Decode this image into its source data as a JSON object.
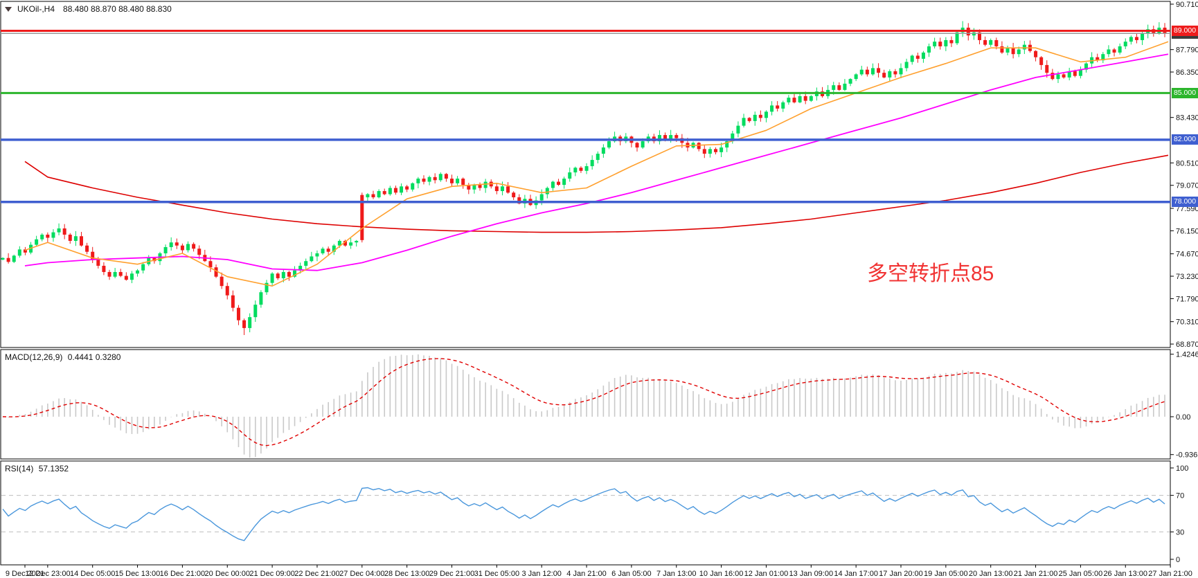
{
  "header": {
    "symbol_info": "UKOil-,H4",
    "ohlc": "88.480 88.870 88.480 88.830"
  },
  "annotation": {
    "text": "多空转折点85",
    "color": "#f13333"
  },
  "price_axis": {
    "ticks": [
      {
        "label": "90.710",
        "price": 90.71
      },
      {
        "label": "87.790",
        "price": 87.79
      },
      {
        "label": "86.350",
        "price": 86.35
      },
      {
        "label": "83.430",
        "price": 83.43
      },
      {
        "label": "80.510",
        "price": 80.51
      },
      {
        "label": "79.070",
        "price": 79.07
      },
      {
        "label": "77.590",
        "price": 77.59
      },
      {
        "label": "76.150",
        "price": 76.15
      },
      {
        "label": "74.670",
        "price": 74.67
      },
      {
        "label": "73.230",
        "price": 73.23
      },
      {
        "label": "71.790",
        "price": 71.79
      },
      {
        "label": "70.310",
        "price": 70.31
      },
      {
        "label": "68.870",
        "price": 68.87
      }
    ],
    "badges": [
      {
        "name": "current-price-badge",
        "label": "88.830",
        "price": 88.83,
        "bg": "#3c3c3c",
        "line_color": "#9a9a9a",
        "line_width": 1.5
      },
      {
        "name": "resistance-badge-89",
        "label": "89.000",
        "price": 89.0,
        "bg": "#ee1c1c",
        "line_color": "#ee1c1c",
        "line_width": 3
      },
      {
        "name": "support-badge-85",
        "label": "85.000",
        "price": 85.0,
        "bg": "#2cb52c",
        "line_color": "#2cb52c",
        "line_width": 3
      },
      {
        "name": "support-badge-82",
        "label": "82.000",
        "price": 82.0,
        "bg": "#3f5fd0",
        "line_color": "#3f5fd0",
        "line_width": 3.5
      },
      {
        "name": "support-badge-78",
        "label": "78.000",
        "price": 78.0,
        "bg": "#3f5fd0",
        "line_color": "#3f5fd0",
        "line_width": 3.5
      }
    ]
  },
  "time_axis": {
    "labels": [
      "9 Dec 2021",
      "12 Dec 23:00",
      "14 Dec 05:00",
      "15 Dec 13:00",
      "16 Dec 21:00",
      "20 Dec 00:00",
      "21 Dec 09:00",
      "22 Dec 21:00",
      "27 Dec 04:00",
      "28 Dec 13:00",
      "29 Dec 21:00",
      "31 Dec 05:00",
      "3 Jan 12:00",
      "4 Jan 21:00",
      "6 Jan 05:00",
      "7 Jan 13:00",
      "10 Jan 16:00",
      "12 Jan 01:00",
      "13 Jan 09:00",
      "14 Jan 17:00",
      "17 Jan 20:00",
      "19 Jan 05:00",
      "20 Jan 13:00",
      "21 Jan 21:00",
      "25 Jan 05:00",
      "26 Jan 13:00",
      "27 Jan 21:00"
    ]
  },
  "indicators": {
    "macd": {
      "title": "MACD(12,26,9)",
      "values": "0.4441 0.3280",
      "axis": [
        {
          "label": "1.4246",
          "value": 1.4246
        },
        {
          "label": "0.00",
          "value": 0.0
        },
        {
          "label": "-0.9363",
          "value": -0.9363
        }
      ]
    },
    "rsi": {
      "title": "RSI(14)",
      "value": "57.1352",
      "axis": [
        {
          "label": "100",
          "value": 100
        },
        {
          "label": "70",
          "value": 70
        },
        {
          "label": "30",
          "value": 30
        },
        {
          "label": "0",
          "value": 0
        }
      ],
      "levels": [
        70,
        30
      ]
    }
  },
  "chart_data": {
    "type": "candlestick",
    "symbol": "UKOil-",
    "timeframe": "H4",
    "title": "UKOil- H4 with MACD(12,26,9) and RSI(14)",
    "ylim": [
      68.87,
      90.71
    ],
    "last_ohlc": {
      "open": 88.48,
      "high": 88.87,
      "low": 88.48,
      "close": 88.83
    },
    "closes": [
      74.4,
      74.15,
      74.55,
      74.95,
      74.75,
      75.25,
      75.6,
      75.9,
      75.7,
      76.05,
      76.3,
      75.9,
      75.5,
      75.8,
      75.2,
      74.8,
      74.3,
      73.9,
      73.5,
      73.2,
      73.5,
      73.25,
      73.0,
      73.4,
      73.6,
      74.0,
      74.4,
      74.2,
      74.7,
      75.1,
      75.4,
      75.2,
      74.9,
      75.3,
      75.0,
      74.6,
      74.2,
      73.8,
      73.2,
      72.6,
      72.0,
      71.2,
      70.4,
      69.9,
      70.6,
      71.4,
      72.2,
      72.8,
      73.4,
      73.1,
      73.5,
      73.2,
      73.6,
      73.9,
      74.2,
      74.5,
      74.7,
      75.0,
      74.8,
      75.2,
      75.5,
      75.2,
      75.4,
      75.5,
      78.3,
      78.5,
      78.3,
      78.7,
      78.5,
      78.9,
      78.6,
      79.0,
      78.8,
      79.2,
      79.5,
      79.3,
      79.6,
      79.4,
      79.8,
      79.5,
      79.2,
      79.5,
      79.1,
      78.8,
      79.1,
      78.9,
      79.3,
      79.0,
      78.7,
      79.0,
      78.6,
      78.3,
      77.9,
      78.2,
      77.8,
      78.1,
      78.5,
      78.9,
      79.3,
      79.1,
      79.5,
      79.9,
      80.2,
      80.0,
      80.3,
      80.7,
      81.1,
      81.5,
      81.9,
      82.2,
      81.9,
      82.2,
      81.8,
      81.5,
      81.9,
      82.2,
      81.9,
      82.3,
      82.0,
      82.3,
      82.1,
      81.8,
      81.5,
      81.8,
      81.4,
      81.1,
      81.4,
      81.2,
      81.5,
      81.9,
      82.4,
      82.9,
      83.4,
      83.2,
      83.6,
      83.4,
      83.8,
      84.2,
      84.0,
      84.4,
      84.7,
      84.4,
      84.8,
      84.5,
      84.8,
      85.1,
      84.8,
      85.2,
      85.5,
      85.2,
      85.6,
      85.9,
      86.2,
      86.5,
      86.2,
      86.6,
      86.3,
      86.0,
      86.4,
      86.2,
      86.6,
      87.0,
      87.4,
      87.2,
      87.6,
      88.0,
      88.3,
      88.0,
      88.4,
      88.2,
      88.9,
      89.2,
      88.7,
      88.9,
      88.4,
      88.1,
      88.4,
      88.0,
      87.6,
      87.9,
      87.5,
      87.8,
      88.1,
      87.7,
      87.3,
      86.8,
      86.3,
      85.9,
      86.2,
      86.0,
      86.4,
      86.1,
      86.5,
      86.9,
      87.3,
      87.1,
      87.5,
      87.8,
      87.6,
      88.0,
      88.3,
      88.6,
      88.4,
      88.8,
      89.1,
      88.8,
      89.2,
      88.83
    ],
    "candle_overrides": {
      "43": {
        "l": 69.45
      },
      "64": {
        "o": 78.45,
        "h": 78.6,
        "l": 75.4,
        "c": 75.55
      },
      "171": {
        "h": 89.62
      },
      "206": {
        "h": 89.55
      }
    },
    "ma_fast_orange": [
      74.9,
      75.4,
      74.4,
      74.0,
      74.7,
      73.2,
      72.6,
      74.0,
      76.3,
      78.2,
      79.0,
      79.2,
      78.6,
      78.9,
      80.3,
      81.6,
      81.7,
      82.6,
      84.0,
      85.0,
      86.0,
      86.9,
      87.9,
      87.9,
      87.0,
      87.3,
      88.3
    ],
    "ma_slow_magenta": [
      73.9,
      74.1,
      74.3,
      74.4,
      74.5,
      74.3,
      73.7,
      73.6,
      74.1,
      74.9,
      75.8,
      76.6,
      77.3,
      77.9,
      78.6,
      79.4,
      80.2,
      81.0,
      81.8,
      82.6,
      83.4,
      84.3,
      85.2,
      86.0,
      86.5,
      87.0,
      87.5
    ],
    "ma_long_red": [
      80.6,
      79.6,
      78.9,
      78.3,
      77.8,
      77.3,
      76.9,
      76.6,
      76.4,
      76.25,
      76.15,
      76.1,
      76.05,
      76.05,
      76.1,
      76.2,
      76.35,
      76.6,
      76.9,
      77.3,
      77.7,
      78.1,
      78.6,
      79.2,
      79.9,
      80.5,
      81.0
    ],
    "macd_axis_range": [
      -0.9363,
      1.4246
    ],
    "rsi_range": [
      0,
      100
    ]
  },
  "colors": {
    "up": "#00dc5f",
    "down": "#ef1a1a",
    "ma_fast": "#ffa02e",
    "ma_slow": "#ff00ff",
    "ma_long": "#dd0000",
    "macd_hist": "#c9c9c9",
    "macd_signal": "#e00000",
    "rsi_line": "#4a97dc",
    "level_dashed": "#bdbdbd",
    "panel_border": "#000000",
    "bid_line": "#9a9a9a"
  }
}
